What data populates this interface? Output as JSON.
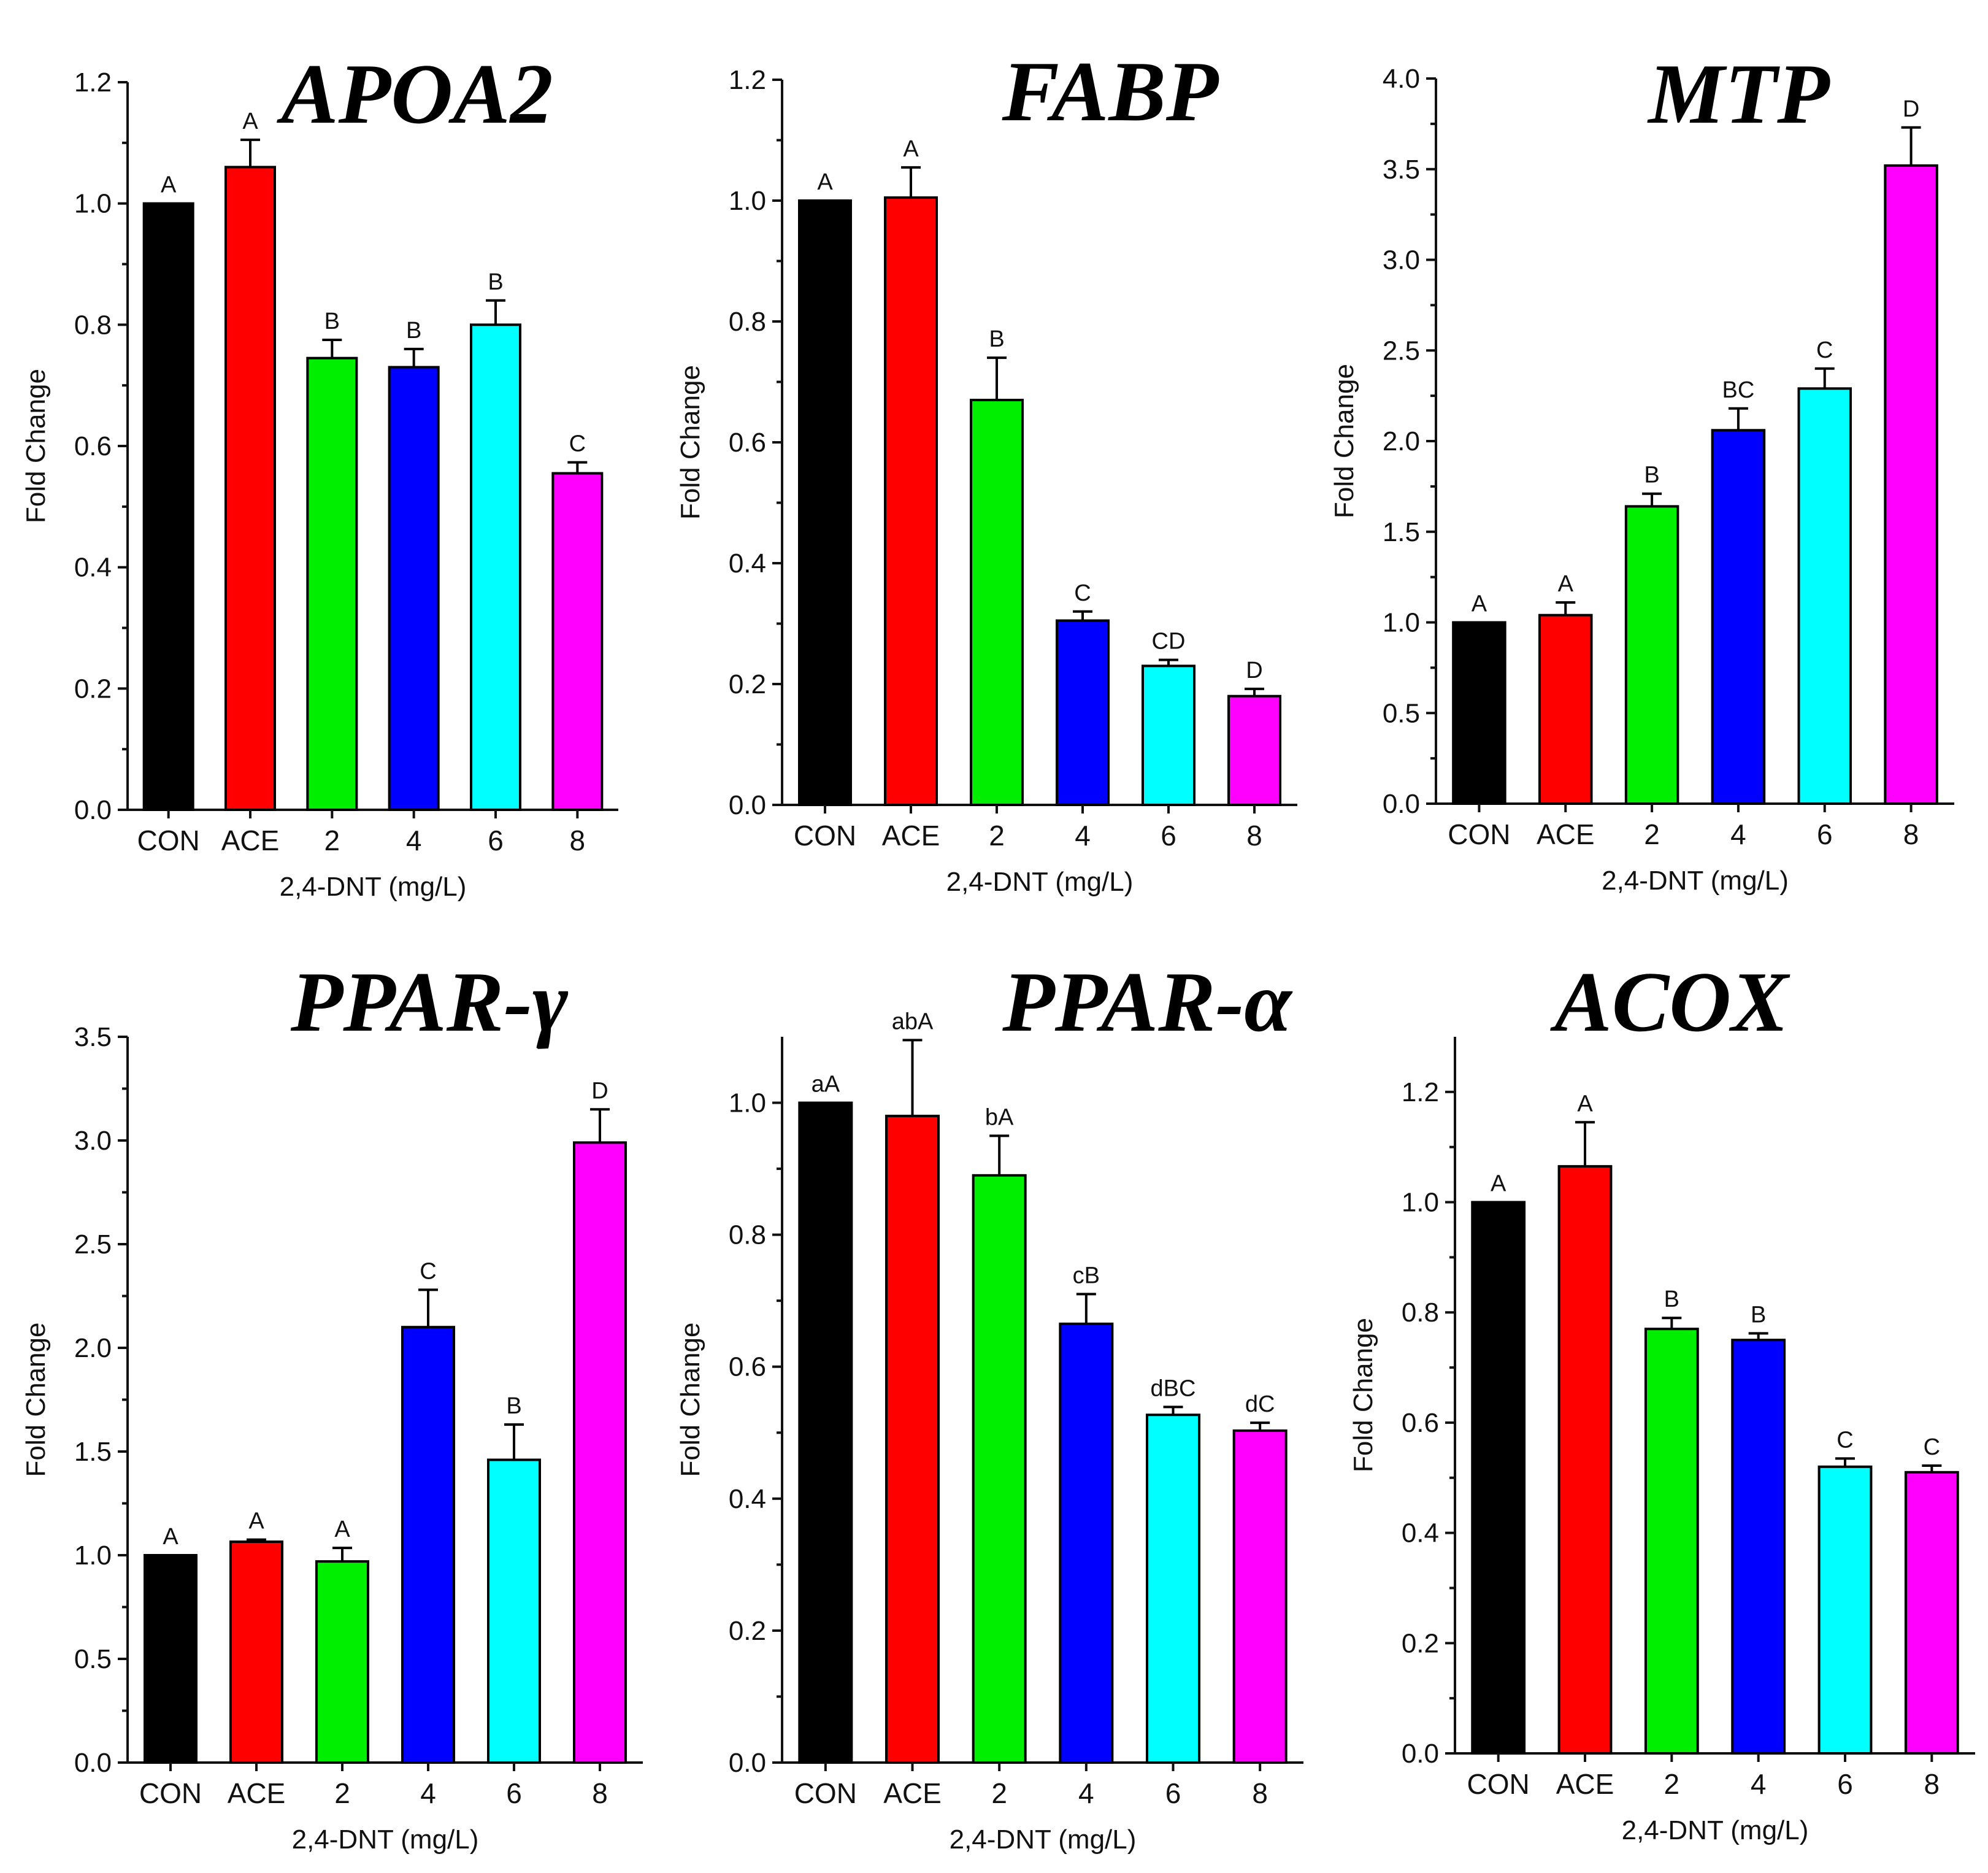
{
  "chart_data": [
    {
      "type": "bar",
      "title": "APOA2",
      "xlabel": "2,4-DNT (mg/L)",
      "ylabel": "Fold Change",
      "ylim": [
        0,
        1.2
      ],
      "yticks": [
        "0.0",
        "0.2",
        "0.4",
        "0.6",
        "0.8",
        "1.0",
        "1.2"
      ],
      "categories": [
        "CON",
        "ACE",
        "2",
        "4",
        "6",
        "8"
      ],
      "values": [
        1.0,
        1.06,
        0.745,
        0.73,
        0.8,
        0.555
      ],
      "errors": [
        0.0,
        0.045,
        0.03,
        0.03,
        0.04,
        0.018
      ],
      "labels": [
        "A",
        "A",
        "B",
        "B",
        "B",
        "C"
      ],
      "colors": [
        "#000000",
        "#ff0000",
        "#00ee00",
        "#0000ff",
        "#00ffff",
        "#ff00ff"
      ]
    },
    {
      "type": "bar",
      "title": "FABP",
      "xlabel": "2,4-DNT (mg/L)",
      "ylabel": "Fold Change",
      "ylim": [
        0,
        1.2
      ],
      "yticks": [
        "0.0",
        "0.2",
        "0.4",
        "0.6",
        "0.8",
        "1.0",
        "1.2"
      ],
      "categories": [
        "CON",
        "ACE",
        "2",
        "4",
        "6",
        "8"
      ],
      "values": [
        1.0,
        1.005,
        0.67,
        0.305,
        0.23,
        0.18
      ],
      "errors": [
        0.0,
        0.05,
        0.07,
        0.015,
        0.01,
        0.012
      ],
      "labels": [
        "A",
        "A",
        "B",
        "C",
        "CD",
        "D"
      ],
      "colors": [
        "#000000",
        "#ff0000",
        "#00ee00",
        "#0000ff",
        "#00ffff",
        "#ff00ff"
      ]
    },
    {
      "type": "bar",
      "title": "MTP",
      "xlabel": "2,4-DNT (mg/L)",
      "ylabel": "Fold Change",
      "ylim": [
        0,
        4.0
      ],
      "yticks": [
        "0.0",
        "0.5",
        "1.0",
        "1.5",
        "2.0",
        "2.5",
        "3.0",
        "3.5",
        "4.0"
      ],
      "categories": [
        "CON",
        "ACE",
        "2",
        "4",
        "6",
        "8"
      ],
      "values": [
        1.0,
        1.04,
        1.64,
        2.06,
        2.29,
        3.52
      ],
      "errors": [
        0.0,
        0.07,
        0.07,
        0.12,
        0.11,
        0.21
      ],
      "labels": [
        "A",
        "A",
        "B",
        "BC",
        "C",
        "D"
      ],
      "colors": [
        "#000000",
        "#ff0000",
        "#00ee00",
        "#0000ff",
        "#00ffff",
        "#ff00ff"
      ]
    },
    {
      "type": "bar",
      "title": "PPAR-γ",
      "xlabel": "2,4-DNT (mg/L)",
      "ylabel": "Fold Change",
      "ylim": [
        0,
        3.5
      ],
      "yticks": [
        "0.0",
        "0.5",
        "1.0",
        "1.5",
        "2.0",
        "2.5",
        "3.0",
        "3.5"
      ],
      "categories": [
        "CON",
        "ACE",
        "2",
        "4",
        "6",
        "8"
      ],
      "values": [
        1.0,
        1.065,
        0.97,
        2.1,
        1.46,
        2.99
      ],
      "errors": [
        0.0,
        0.01,
        0.065,
        0.18,
        0.17,
        0.16
      ],
      "labels": [
        "A",
        "A",
        "A",
        "C",
        "B",
        "D"
      ],
      "colors": [
        "#000000",
        "#ff0000",
        "#00ee00",
        "#0000ff",
        "#00ffff",
        "#ff00ff"
      ]
    },
    {
      "type": "bar",
      "title": "PPAR-α",
      "xlabel": "2,4-DNT (mg/L)",
      "ylabel": "Fold Change",
      "ylim": [
        0,
        1.1
      ],
      "yticks": [
        "0.0",
        "0.2",
        "0.4",
        "0.6",
        "0.8",
        "1.0"
      ],
      "categories": [
        "CON",
        "ACE",
        "2",
        "4",
        "6",
        "8"
      ],
      "values": [
        1.0,
        0.98,
        0.89,
        0.665,
        0.527,
        0.503
      ],
      "errors": [
        0.0,
        0.115,
        0.06,
        0.045,
        0.012,
        0.012
      ],
      "labels": [
        "aA",
        "abA",
        "bA",
        "cB",
        "dBC",
        "dC"
      ],
      "colors": [
        "#000000",
        "#ff0000",
        "#00ee00",
        "#0000ff",
        "#00ffff",
        "#ff00ff"
      ]
    },
    {
      "type": "bar",
      "title": "ACOX",
      "xlabel": "2,4-DNT (mg/L)",
      "ylabel": "Fold Change",
      "ylim": [
        0,
        1.3
      ],
      "yticks": [
        "0.0",
        "0.2",
        "0.4",
        "0.6",
        "0.8",
        "1.0",
        "1.2"
      ],
      "categories": [
        "CON",
        "ACE",
        "2",
        "4",
        "6",
        "8"
      ],
      "values": [
        1.0,
        1.065,
        0.77,
        0.75,
        0.52,
        0.51
      ],
      "errors": [
        0.0,
        0.08,
        0.02,
        0.012,
        0.015,
        0.012
      ],
      "labels": [
        "A",
        "A",
        "B",
        "B",
        "C",
        "C"
      ],
      "colors": [
        "#000000",
        "#ff0000",
        "#00ee00",
        "#0000ff",
        "#00ffff",
        "#ff00ff"
      ]
    }
  ]
}
